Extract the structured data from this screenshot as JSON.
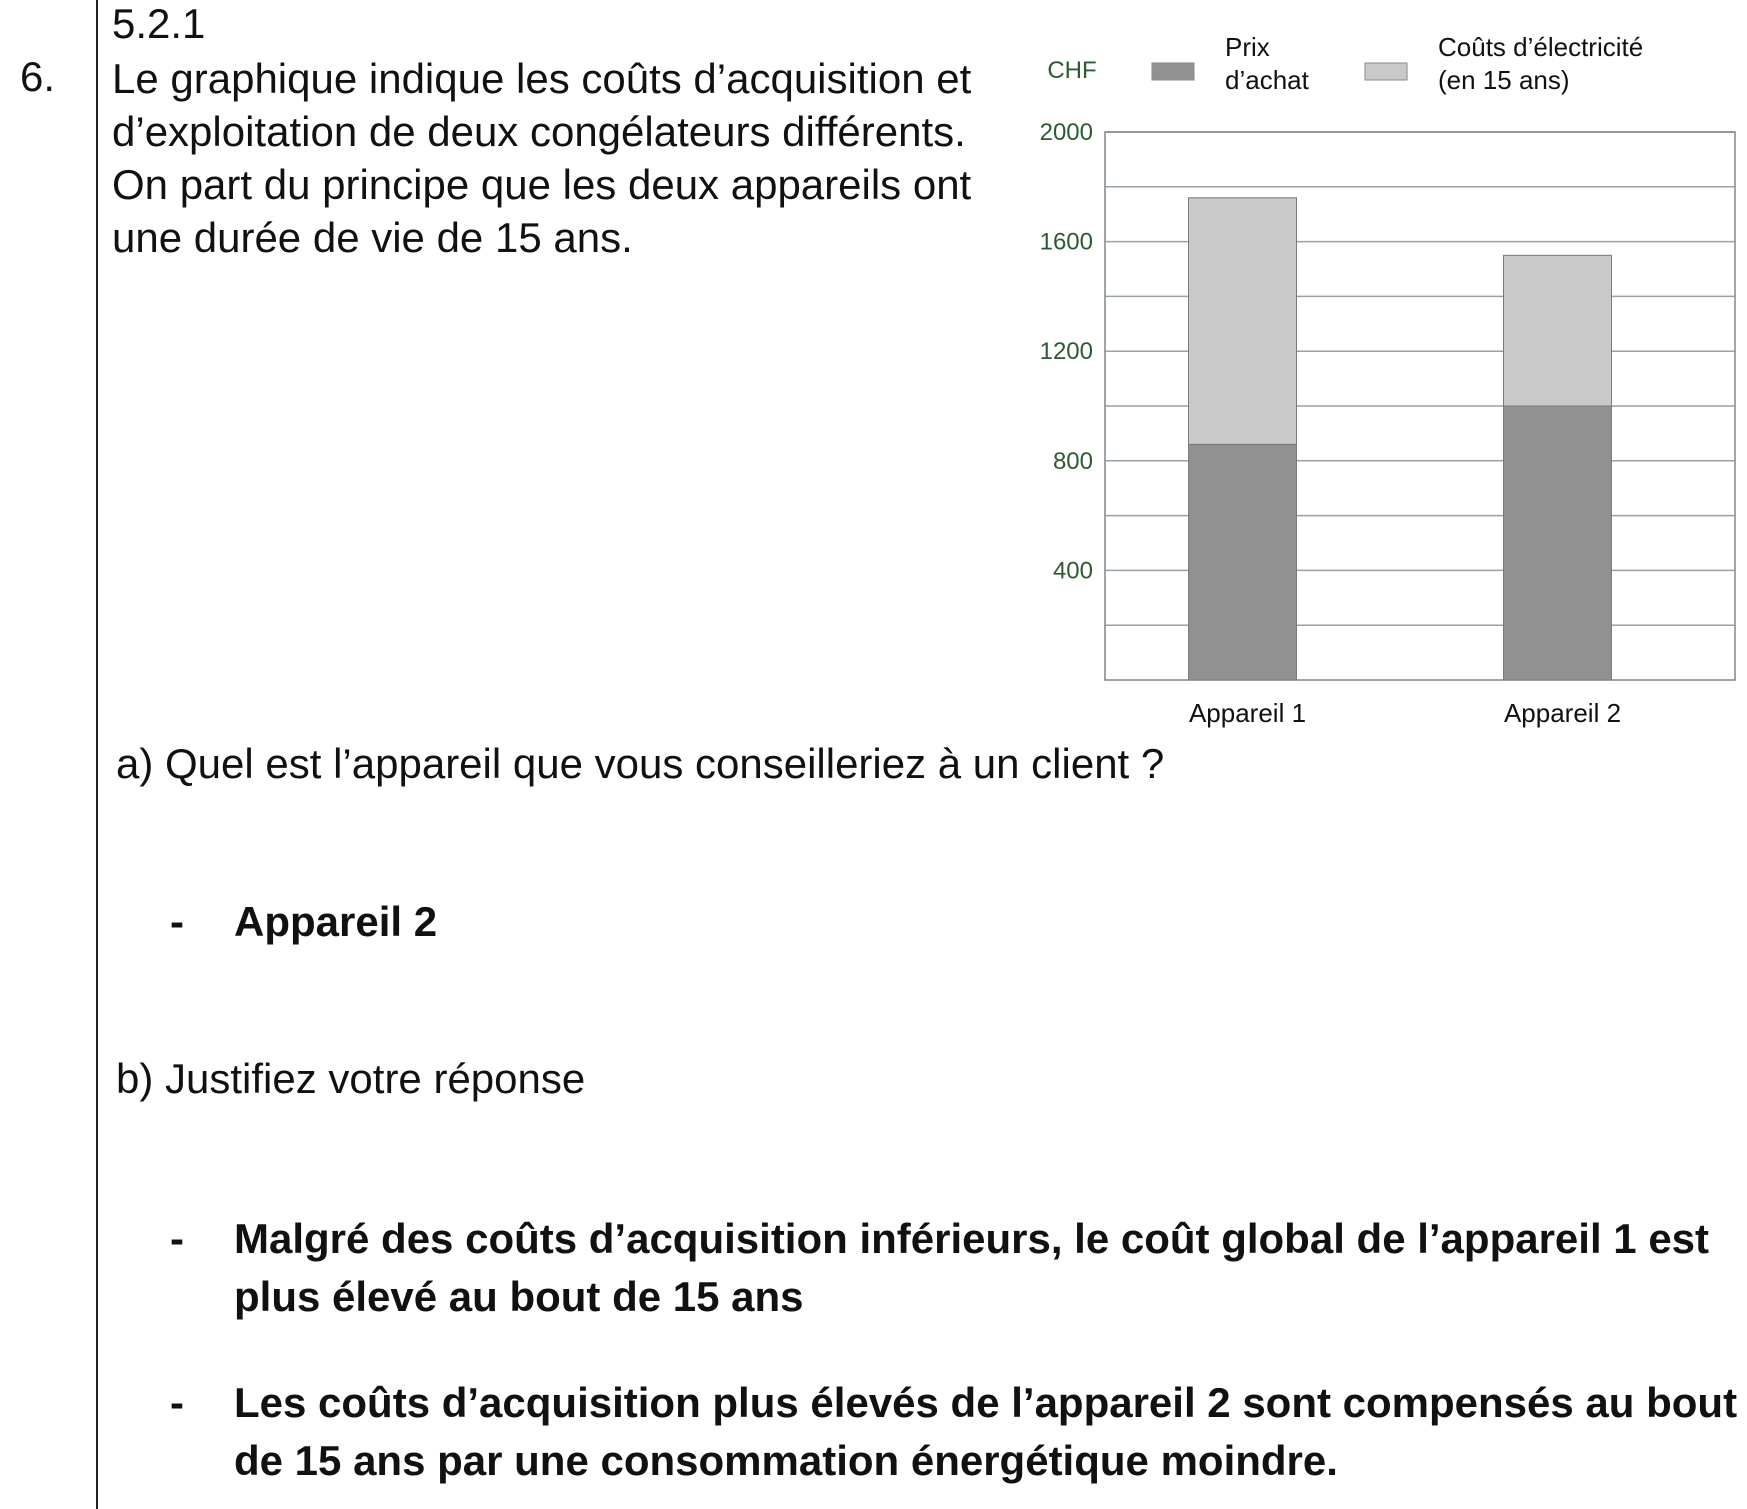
{
  "header": {
    "ref": "5.2.1",
    "question_number": "6."
  },
  "intro": {
    "paragraph_1": "Le graphique indique les coûts d’acquisition et d’exploitation de deux congélateurs différents.",
    "paragraph_2": "On part du principe que les deux appareils ont une durée de vie de 15 ans."
  },
  "chart_data": {
    "type": "bar",
    "stacked": true,
    "title": "",
    "xlabel": "",
    "ylabel": "CHF",
    "categories": [
      "Appareil 1",
      "Appareil 2"
    ],
    "series": [
      {
        "name_lines": [
          "Prix",
          "d’achat"
        ],
        "values": [
          860,
          1000
        ],
        "color": "#919191"
      },
      {
        "name_lines": [
          "Coûts d’électricité",
          "(en 15 ans)"
        ],
        "values": [
          900,
          550
        ],
        "color": "#c9c9c9"
      }
    ],
    "ylim": [
      0,
      2000
    ],
    "yticks": [
      400,
      800,
      1200,
      1600,
      2000
    ],
    "gridline_step": 200,
    "grid": true,
    "legend": "top",
    "colors": {
      "axis_text": "#2e5a33",
      "grid": "#9aa39c",
      "axis": "#7d8a80"
    }
  },
  "question_a": {
    "prompt": "a) Quel est l’appareil que vous conseilleriez à un client ?",
    "answer_dash": "-",
    "answer": "Appareil 2"
  },
  "question_b": {
    "label": "b)",
    "prompt": "Justifiez votre réponse",
    "answers": [
      {
        "dash": "-",
        "text": "Malgré des coûts d’acquisition inférieurs, le coût global de l’appareil 1 est plus élevé au bout de 15 ans"
      },
      {
        "dash": "-",
        "text": "Les coûts d’acquisition plus élevés de l’appareil 2 sont compensés au bout de 15 ans par une consommation énergétique moindre."
      }
    ]
  }
}
